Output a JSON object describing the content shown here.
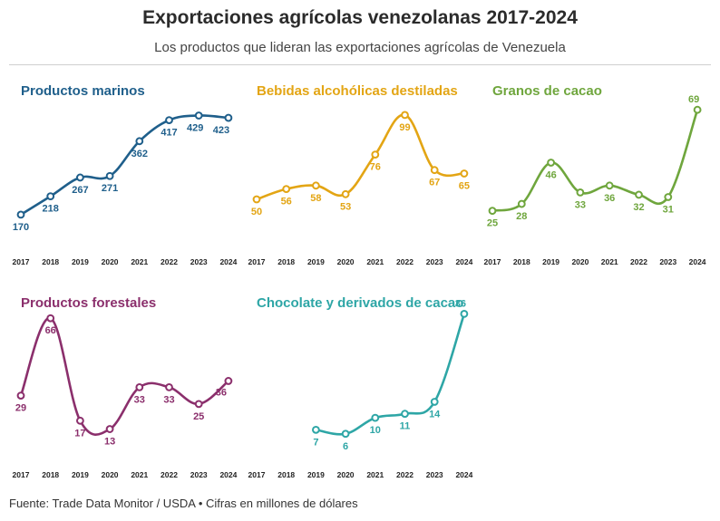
{
  "header": {
    "title": "Exportaciones agrícolas venezolanas 2017-2024",
    "subtitle": "Los productos que lideran las exportaciones agrícolas de Venezuela"
  },
  "footer": {
    "source": "Fuente: Trade Data Monitor / USDA • Cifras en millones de dólares"
  },
  "chart_data": [
    {
      "type": "line",
      "title": "Productos marinos",
      "color": "#1f5f8b",
      "x": [
        "2017",
        "2018",
        "2019",
        "2020",
        "2021",
        "2022",
        "2023",
        "2024"
      ],
      "values": [
        170,
        218,
        267,
        271,
        362,
        417,
        429,
        423
      ],
      "labels": [
        "170",
        "218",
        "267",
        "271",
        "362",
        "417",
        "429",
        "423"
      ],
      "ylim": [
        120,
        480
      ]
    },
    {
      "type": "line",
      "title": "Bebidas alcohólicas destiladas",
      "color": "#e3a514",
      "x": [
        "2017",
        "2018",
        "2019",
        "2020",
        "2021",
        "2022",
        "2023",
        "2024"
      ],
      "values": [
        50,
        56,
        58,
        53,
        76,
        99,
        67,
        65
      ],
      "labels": [
        "50",
        "56",
        "58",
        "53",
        "76",
        "99",
        "67",
        "65"
      ],
      "ylim": [
        30,
        110
      ]
    },
    {
      "type": "line",
      "title": "Granos de cacao",
      "color": "#6fa63d",
      "x": [
        "2017",
        "2018",
        "2019",
        "2020",
        "2021",
        "2022",
        "2023",
        "2024"
      ],
      "values": [
        25,
        28,
        46,
        33,
        36,
        32,
        31,
        69
      ],
      "labels": [
        "25",
        "28",
        "46",
        "33",
        "36",
        "32",
        "31",
        "69"
      ],
      "ylim": [
        15,
        75
      ]
    },
    {
      "type": "line",
      "title": "Productos forestales",
      "color": "#8b2f6c",
      "x": [
        "2017",
        "2018",
        "2019",
        "2020",
        "2021",
        "2022",
        "2023",
        "2024"
      ],
      "values": [
        29,
        66,
        17,
        13,
        33,
        33,
        25,
        36
      ],
      "labels": [
        "29",
        "66",
        "17",
        "13",
        "33",
        "33",
        "25",
        "36"
      ],
      "ylim": [
        5,
        70
      ]
    },
    {
      "type": "line",
      "title": "Chocolate y derivados de cacao",
      "color": "#2ea6a6",
      "x": [
        "2017",
        "2018",
        "2019",
        "2020",
        "2021",
        "2022",
        "2023",
        "2024"
      ],
      "values": [
        null,
        null,
        7,
        6,
        10,
        11,
        14,
        36
      ],
      "labels": [
        "",
        "",
        "7",
        "6",
        "10",
        "11",
        "14",
        "36"
      ],
      "ylim": [
        3,
        37
      ]
    }
  ]
}
